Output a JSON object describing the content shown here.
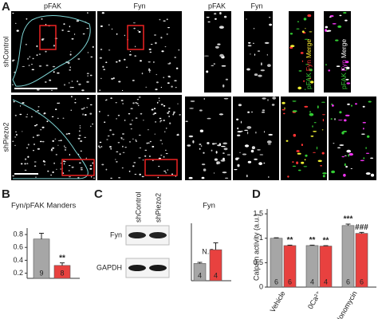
{
  "panels": [
    "A",
    "B",
    "C",
    "D"
  ],
  "panel_a": {
    "columns": [
      "pFAK",
      "Fyn",
      "pFAK",
      "Fyn"
    ],
    "rows": [
      "shControl",
      "shPiezo2"
    ],
    "merge_labels": [
      [
        {
          "text": "pFAK",
          "color": "#33cc33"
        },
        {
          "text": "Fyn",
          "color": "#ff3333"
        },
        {
          "text": "Merge",
          "color": "#ffee33"
        }
      ],
      [
        {
          "text": "pFAK",
          "color": "#33cc33"
        },
        {
          "text": "Fyn",
          "color": "#ee33ee"
        },
        {
          "text": "Merge",
          "color": "#ffffff"
        }
      ]
    ]
  },
  "western_blot": {
    "lanes": [
      "shControl",
      "shPiezo2"
    ],
    "rows": [
      "Fyn",
      "GAPDH"
    ]
  },
  "chart_data": [
    {
      "type": "bar",
      "title": "Fyn/pFAK Manders",
      "ylim": [
        0.12,
        0.9
      ],
      "yticks": [
        0.2,
        0.4,
        0.6,
        0.8
      ],
      "series": [
        {
          "color": "#a6a6a6",
          "values": [
            0.73
          ],
          "errors": [
            0.09
          ],
          "n": [
            9
          ]
        },
        {
          "color": "#e8413f",
          "values": [
            0.32
          ],
          "errors": [
            0.04
          ],
          "n": [
            8
          ],
          "significance": [
            "**"
          ]
        }
      ]
    },
    {
      "type": "bar",
      "title": "Fyn",
      "ylim": [
        0,
        0.5
      ],
      "annotation": "N.S.",
      "series": [
        {
          "color": "#a6a6a6",
          "values": [
            0.15
          ],
          "errors": [
            0.01
          ],
          "n": [
            4
          ]
        },
        {
          "color": "#e8413f",
          "values": [
            0.27
          ],
          "errors": [
            0.06
          ],
          "n": [
            4
          ]
        }
      ]
    },
    {
      "type": "bar",
      "ylabel": "Calpain activity (a.u.)",
      "ylim": [
        0,
        1.6
      ],
      "yticks": [
        0,
        0.5,
        1,
        1.5
      ],
      "categories": [
        "Vehicle",
        "0Ca²⁺",
        "Ionomycin"
      ],
      "series": [
        {
          "color": "#a6a6a6",
          "values": [
            1.0,
            0.85,
            1.26
          ],
          "errors": [
            0.01,
            0.01,
            0.03
          ],
          "n": [
            6,
            4,
            6
          ],
          "significance": [
            null,
            "**",
            "***"
          ]
        },
        {
          "color": "#e8413f",
          "values": [
            0.85,
            0.84,
            1.1
          ],
          "errors": [
            0.01,
            0.01,
            0.02
          ],
          "n": [
            6,
            4,
            6
          ],
          "significance": [
            "**",
            "**",
            "###"
          ]
        }
      ]
    }
  ]
}
